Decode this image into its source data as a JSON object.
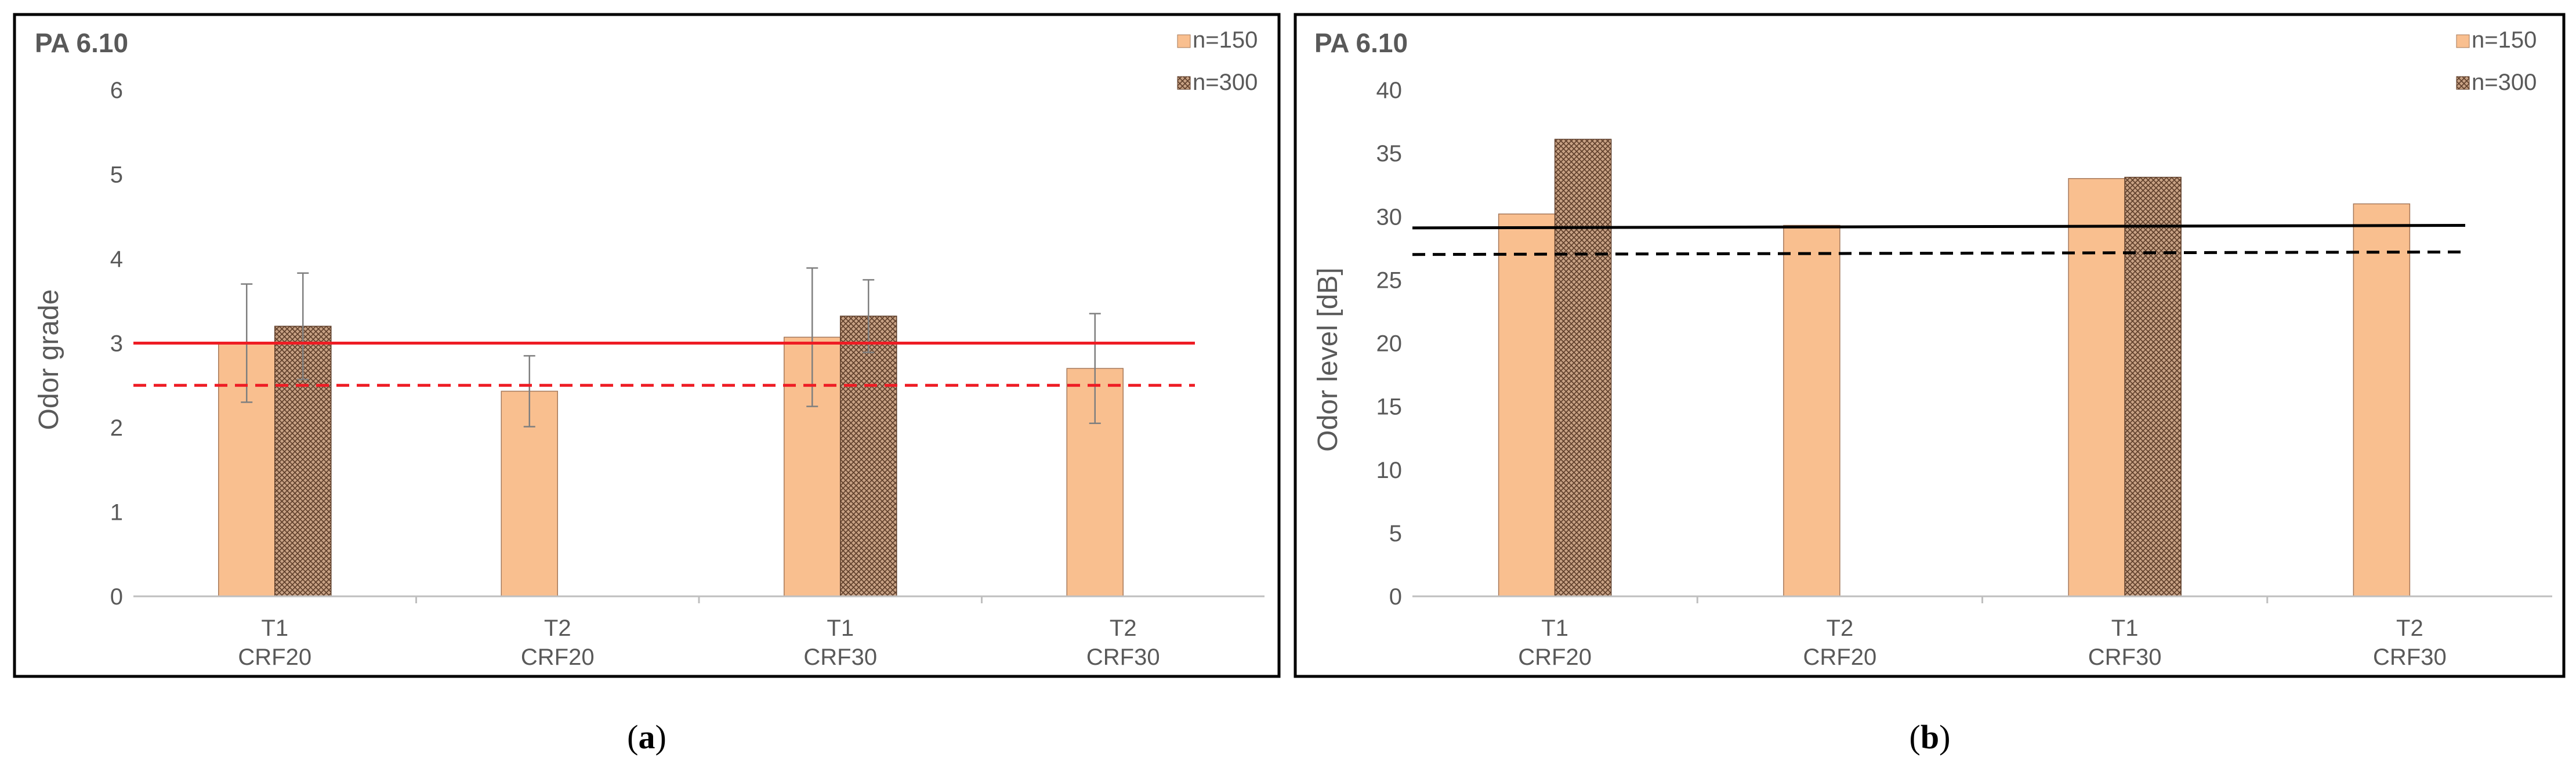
{
  "panels": [
    {
      "id": "a",
      "caption": "(a)",
      "caption_letter": "a",
      "chart_data": {
        "type": "bar",
        "title": "PA 6.10",
        "ylabel": "Odor grade",
        "xlabel": "",
        "ylim": [
          0,
          6
        ],
        "yticks": [
          0,
          1,
          2,
          3,
          4,
          5,
          6
        ],
        "categories": [
          {
            "line1": "T1",
            "line2": "CRF20"
          },
          {
            "line1": "T2",
            "line2": "CRF20"
          },
          {
            "line1": "T1",
            "line2": "CRF30"
          },
          {
            "line1": "T2",
            "line2": "CRF30"
          }
        ],
        "series": [
          {
            "name": "n=150",
            "values": [
              3.0,
              2.43,
              3.07,
              2.7
            ],
            "errors": [
              0.7,
              0.42,
              0.82,
              0.65
            ]
          },
          {
            "name": "n=300",
            "values": [
              3.2,
              null,
              3.32,
              null
            ],
            "errors": [
              0.63,
              null,
              0.43,
              null
            ]
          }
        ],
        "reference_lines": [
          {
            "value": 3.0,
            "value_end": 3.0,
            "style": "solid",
            "color": "#ee1c24"
          },
          {
            "value": 2.5,
            "value_end": 2.5,
            "style": "dashed",
            "color": "#ee1c24"
          }
        ],
        "legend": "top-right"
      }
    },
    {
      "id": "b",
      "caption": "(b)",
      "caption_letter": "b",
      "chart_data": {
        "type": "bar",
        "title": "PA 6.10",
        "ylabel": "Odor level [dB]",
        "xlabel": "",
        "ylim": [
          0,
          40
        ],
        "yticks": [
          0,
          5,
          10,
          15,
          20,
          25,
          30,
          35,
          40
        ],
        "categories": [
          {
            "line1": "T1",
            "line2": "CRF20"
          },
          {
            "line1": "T2",
            "line2": "CRF20"
          },
          {
            "line1": "T1",
            "line2": "CRF30"
          },
          {
            "line1": "T2",
            "line2": "CRF30"
          }
        ],
        "series": [
          {
            "name": "n=150",
            "values": [
              30.2,
              29.3,
              33.0,
              31.0
            ],
            "errors": [
              null,
              null,
              null,
              null
            ]
          },
          {
            "name": "n=300",
            "values": [
              36.1,
              null,
              33.1,
              null
            ],
            "errors": [
              null,
              null,
              null,
              null
            ]
          }
        ],
        "reference_lines": [
          {
            "value": 29.1,
            "value_end": 29.3,
            "style": "solid",
            "color": "#000000"
          },
          {
            "value": 27.0,
            "value_end": 27.2,
            "style": "dashed",
            "color": "#000000"
          }
        ],
        "legend": "top-right"
      }
    }
  ],
  "colors": {
    "bar_150": "#f9bf8f",
    "bar_150_edge": "#a5785a",
    "bar_300_bg": "#c7a184",
    "bar_300_hatch": "#5e3e2a",
    "frame": "#000000",
    "axis": "#bfbfbf",
    "text": "#595959"
  }
}
